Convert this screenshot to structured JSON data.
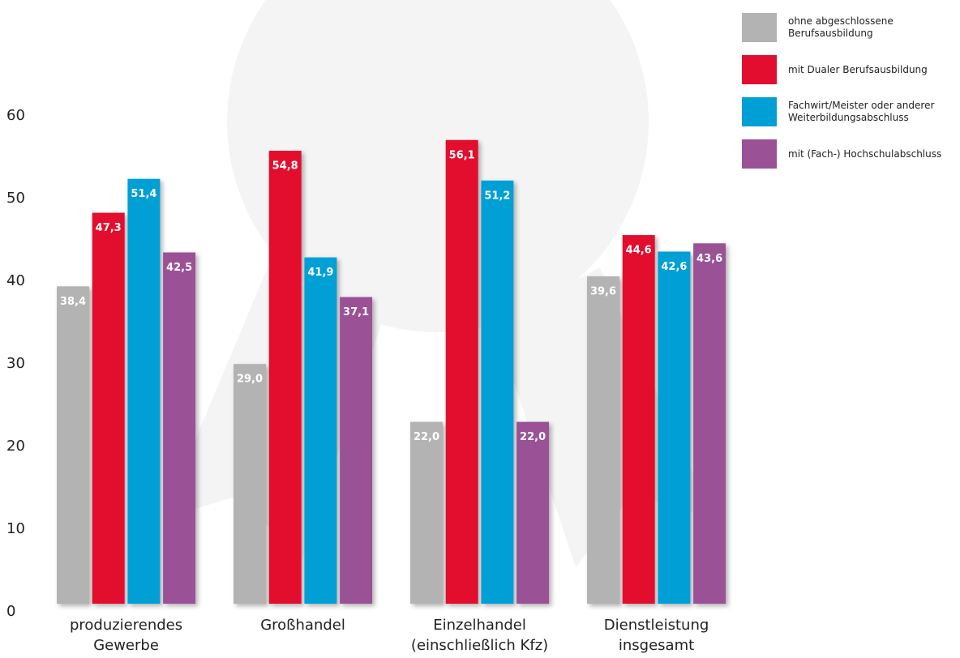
{
  "chart_data": {
    "type": "bar",
    "categories": [
      "produzierendes Gewerbe",
      "Großhandel",
      "Einzelhandel (einschließlich Kfz)",
      "Dienstleistung insgesamt"
    ],
    "series": [
      {
        "name": "ohne abgeschlossene Berufsausbildung",
        "color": "#b3b3b3",
        "values": [
          38.4,
          29.0,
          22.0,
          39.6
        ],
        "value_labels": [
          "38,4",
          "29,0",
          "22,0",
          "39,6"
        ]
      },
      {
        "name": "mit Dualer Berufsausbildung",
        "color": "#e30d2f",
        "values": [
          47.3,
          54.8,
          56.1,
          44.6
        ],
        "value_labels": [
          "47,3",
          "54,8",
          "56,1",
          "44,6"
        ]
      },
      {
        "name": "Fachwirt/Meister oder anderer Weiterbildungsabschluss",
        "color": "#009fd6",
        "values": [
          51.4,
          41.9,
          51.2,
          42.6
        ],
        "value_labels": [
          "51,4",
          "41,9",
          "51,2",
          "42,6"
        ]
      },
      {
        "name": "mit (Fach-) Hochschulabschluss",
        "color": "#9b5196",
        "values": [
          42.5,
          37.1,
          22.0,
          43.6
        ],
        "value_labels": [
          "42,5",
          "37,1",
          "22,0",
          "43,6"
        ]
      }
    ],
    "ylim": [
      0,
      60
    ],
    "yticks": [
      0,
      10,
      20,
      30,
      40,
      50,
      60
    ],
    "legend": "top-right"
  }
}
